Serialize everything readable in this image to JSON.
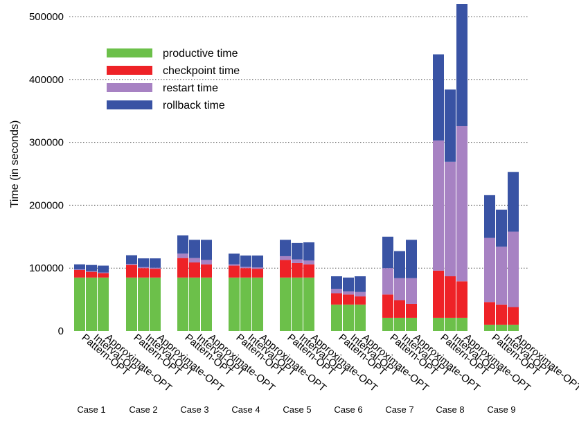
{
  "colors": {
    "productive": "#6cc04a",
    "checkpoint": "#ee2227",
    "restart": "#a782c3",
    "rollback": "#3953a4"
  },
  "chart_data": {
    "type": "bar",
    "stacked": true,
    "title": "",
    "xlabel": "",
    "ylabel": "Time (in seconds)",
    "ylim": [
      0,
      500000
    ],
    "yticks": [
      0,
      100000,
      200000,
      300000,
      400000,
      500000
    ],
    "ytick_labels": [
      "0",
      "100000",
      "200000",
      "300000",
      "400000",
      "500000"
    ],
    "grid": "horizontal dotted",
    "legend_position": "upper-left",
    "legend": [
      "productive time",
      "checkpoint time",
      "restart time",
      "rollback time"
    ],
    "methods": [
      "Pattern-OPT",
      "Interval-OPT",
      "Approximate-OPT"
    ],
    "cases": [
      "Case 1",
      "Case 2",
      "Case 3",
      "Case 4",
      "Case 5",
      "Case 6",
      "Case 7",
      "Case 8",
      "Case 9"
    ],
    "series": [
      {
        "name": "productive time",
        "values": [
          [
            85000,
            85000,
            85000
          ],
          [
            85000,
            85000,
            85000
          ],
          [
            85000,
            85000,
            85000
          ],
          [
            85000,
            85000,
            85000
          ],
          [
            85000,
            85000,
            85000
          ],
          [
            42000,
            42000,
            42000
          ],
          [
            21000,
            21000,
            21000
          ],
          [
            21000,
            21000,
            21000
          ],
          [
            10000,
            10000,
            10000
          ]
        ]
      },
      {
        "name": "checkpoint time",
        "values": [
          [
            12000,
            9000,
            7000
          ],
          [
            20000,
            15000,
            14000
          ],
          [
            31000,
            24000,
            21000
          ],
          [
            19000,
            15000,
            14000
          ],
          [
            28000,
            23000,
            21000
          ],
          [
            18000,
            16000,
            13000
          ],
          [
            37000,
            28000,
            22000
          ],
          [
            75000,
            66000,
            58000
          ],
          [
            36000,
            32000,
            28000
          ]
        ]
      },
      {
        "name": "restart time",
        "values": [
          [
            1000,
            1000,
            1000
          ],
          [
            1500,
            1500,
            1500
          ],
          [
            7000,
            7000,
            7000
          ],
          [
            2000,
            2000,
            2000
          ],
          [
            6000,
            6000,
            6000
          ],
          [
            7000,
            5000,
            7000
          ],
          [
            42000,
            35000,
            41000
          ],
          [
            207000,
            182000,
            247000
          ],
          [
            102000,
            92000,
            120000
          ]
        ]
      },
      {
        "name": "rollback time",
        "values": [
          [
            8000,
            10000,
            11000
          ],
          [
            14000,
            14000,
            15000
          ],
          [
            29000,
            29000,
            32000
          ],
          [
            17000,
            18000,
            19000
          ],
          [
            26000,
            26000,
            29000
          ],
          [
            20000,
            22000,
            25000
          ],
          [
            50000,
            43000,
            61000
          ],
          [
            137000,
            115000,
            196000
          ],
          [
            68000,
            59000,
            95000
          ]
        ]
      }
    ]
  }
}
